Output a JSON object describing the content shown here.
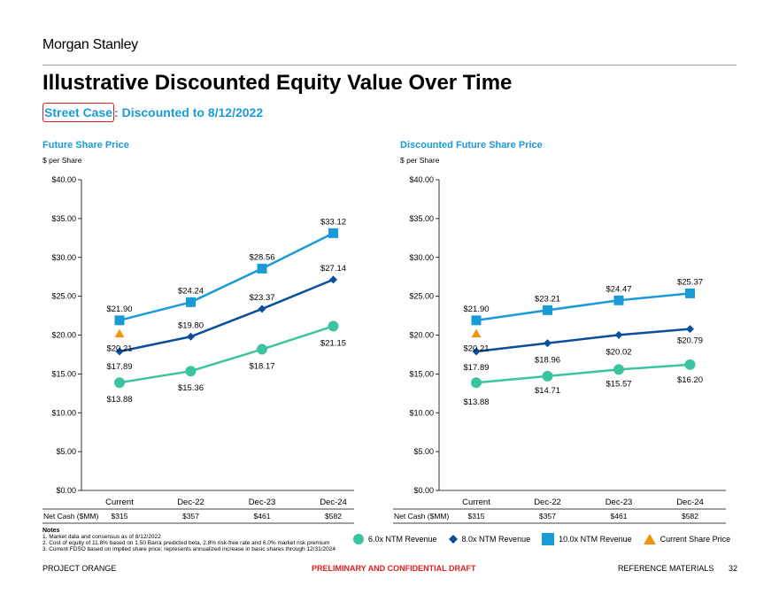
{
  "logo": "Morgan Stanley",
  "title": "Illustrative Discounted Equity Value Over Time",
  "subtitle": {
    "highlight": "Street Case",
    "rest": ": Discounted to 8/12/2022"
  },
  "colors": {
    "accent": "#1a9bd7",
    "series_6x": "#3cc4a0",
    "series_8x": "#0b4f9c",
    "series_10x": "#1a9bd7",
    "current": "#f0950c",
    "confidential": "#e02020"
  },
  "chart_data": [
    {
      "type": "line",
      "title": "Future Share Price",
      "ylabel": "$ per Share",
      "ylim": [
        0,
        40
      ],
      "yticks": [
        "$0.00",
        "$5.00",
        "$10.00",
        "$15.00",
        "$20.00",
        "$25.00",
        "$30.00",
        "$35.00",
        "$40.00"
      ],
      "categories": [
        "Current",
        "Dec-22",
        "Dec-23",
        "Dec-24"
      ],
      "series": [
        {
          "name": "10.0x NTM Revenue",
          "values": [
            21.9,
            24.24,
            28.56,
            33.12
          ],
          "labels": [
            "$21.90",
            "$24.24",
            "$28.56",
            "$33.12"
          ]
        },
        {
          "name": "8.0x NTM Revenue",
          "values": [
            17.89,
            19.8,
            23.37,
            27.14
          ],
          "labels": [
            "$17.89",
            "$19.80",
            "$23.37",
            "$27.14"
          ]
        },
        {
          "name": "6.0x NTM Revenue",
          "values": [
            13.88,
            15.36,
            18.17,
            21.15
          ],
          "labels": [
            "$13.88",
            "$15.36",
            "$18.17",
            "$21.15"
          ]
        }
      ],
      "current_price": {
        "name": "Current Share Price",
        "value": 20.21,
        "label": "$20.21"
      },
      "net_cash_label": "Net Cash ($MM)",
      "net_cash": [
        "$315",
        "$357",
        "$461",
        "$582"
      ]
    },
    {
      "type": "line",
      "title": "Discounted Future Share Price",
      "ylabel": "$ per Share",
      "ylim": [
        0,
        40
      ],
      "yticks": [
        "$0.00",
        "$5.00",
        "$10.00",
        "$15.00",
        "$20.00",
        "$25.00",
        "$30.00",
        "$35.00",
        "$40.00"
      ],
      "categories": [
        "Current",
        "Dec-22",
        "Dec-23",
        "Dec-24"
      ],
      "series": [
        {
          "name": "10.0x NTM Revenue",
          "values": [
            21.9,
            23.21,
            24.47,
            25.37
          ],
          "labels": [
            "$21.90",
            "$23.21",
            "$24.47",
            "$25.37"
          ]
        },
        {
          "name": "8.0x NTM Revenue",
          "values": [
            17.89,
            18.96,
            20.02,
            20.79
          ],
          "labels": [
            "$17.89",
            "$18.96",
            "$20.02",
            "$20.79"
          ]
        },
        {
          "name": "6.0x NTM Revenue",
          "values": [
            13.88,
            14.71,
            15.57,
            16.2
          ],
          "labels": [
            "$13.88",
            "$14.71",
            "$15.57",
            "$16.20"
          ]
        }
      ],
      "current_price": {
        "name": "Current Share Price",
        "value": 20.21,
        "label": "$20.21"
      },
      "net_cash_label": "Net Cash ($MM)",
      "net_cash": [
        "$315",
        "$357",
        "$461",
        "$582"
      ]
    }
  ],
  "notes": {
    "heading": "Notes",
    "items": [
      "1.  Market data and consensus as of 8/12/2022",
      "2.  Cost of equity of 11.8% based on 1.50 Barra predicted beta, 2.8% risk-free rate and 6.0% market risk premium",
      "3.  Current FDSO based on implied share price; represents annualized increase in basic shares through 12/31/2024"
    ]
  },
  "legend": {
    "s6": "6.0x NTM Revenue",
    "s8": "8.0x NTM Revenue",
    "s10": "10.0x NTM Revenue",
    "current": "Current Share Price"
  },
  "footer": {
    "left": "PROJECT ORANGE",
    "center": "PRELIMINARY AND CONFIDENTIAL DRAFT",
    "right": "REFERENCE MATERIALS",
    "page": "32"
  }
}
